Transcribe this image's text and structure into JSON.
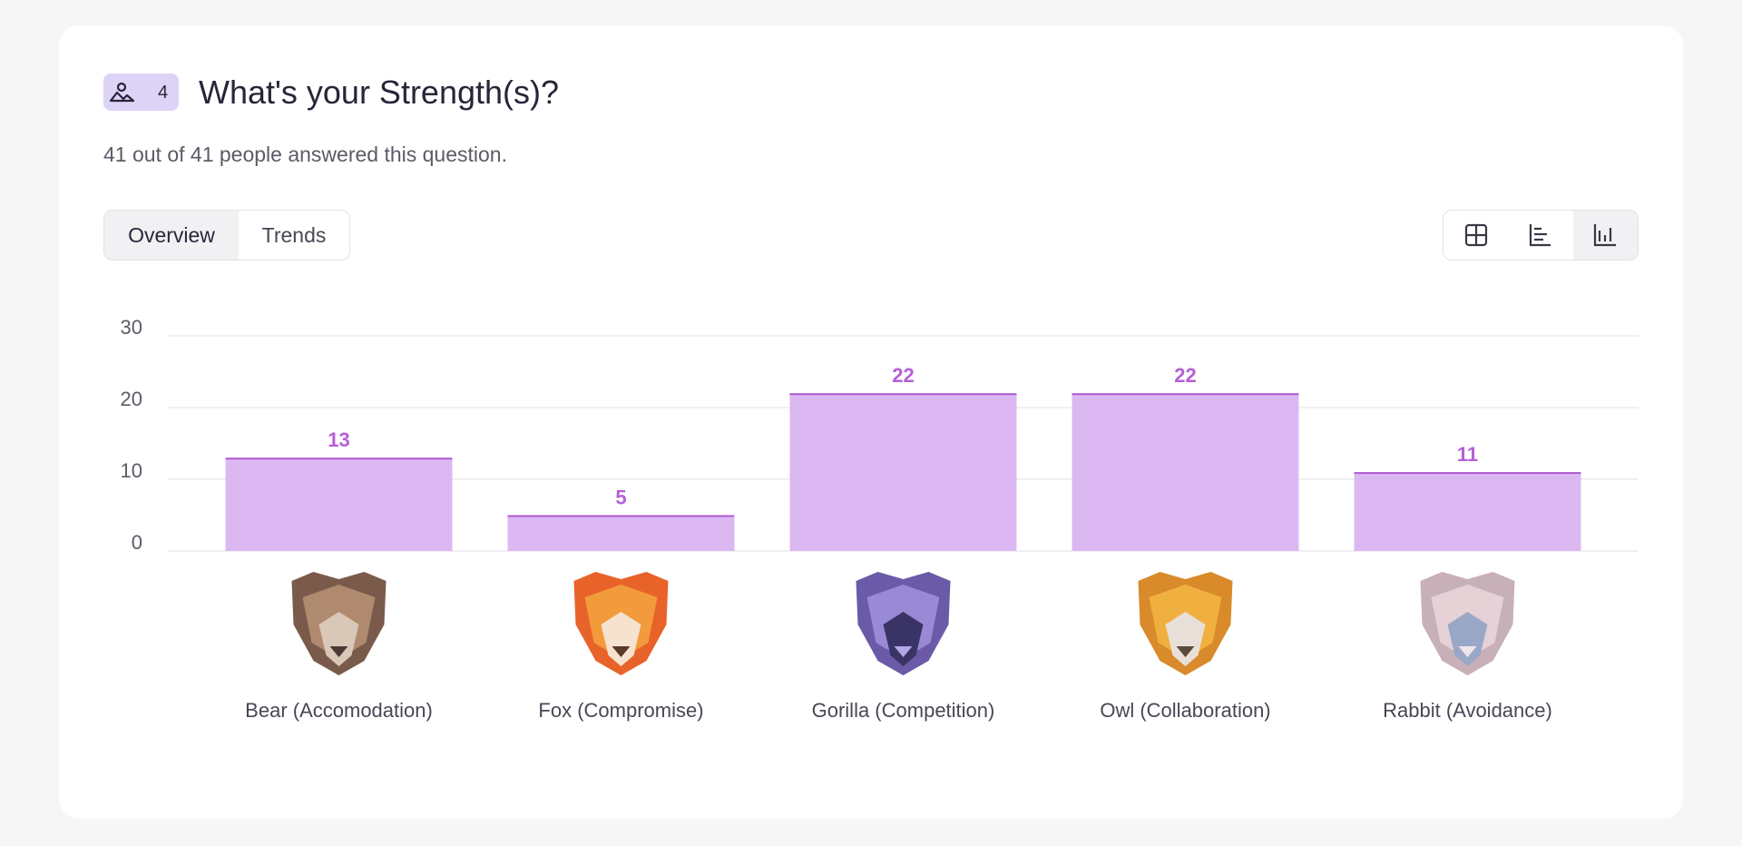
{
  "header": {
    "badge": "4",
    "title": "What's your Strength(s)?",
    "subtitle": "41 out of 41 people answered this question."
  },
  "tabs": [
    "Overview",
    "Trends"
  ],
  "chart_data": {
    "type": "bar",
    "categories": [
      "Bear (Accomodation)",
      "Fox (Compromise)",
      "Gorilla (Competition)",
      "Owl (Collaboration)",
      "Rabbit (Avoidance)"
    ],
    "values": [
      13,
      5,
      22,
      22,
      11
    ],
    "color": "#dcb8f2",
    "ylim": [
      0,
      30
    ],
    "yticks": [
      0,
      10,
      20,
      30
    ],
    "grid": true
  }
}
